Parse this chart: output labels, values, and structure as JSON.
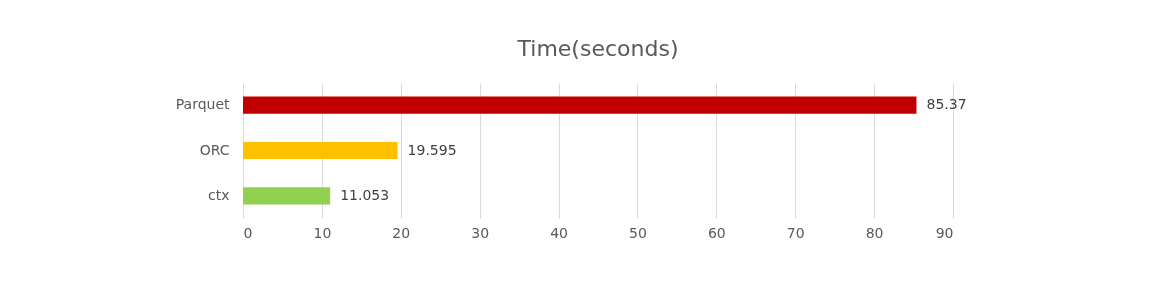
{
  "chart_data": {
    "type": "bar",
    "orientation": "horizontal",
    "title": "Time(seconds)",
    "categories": [
      "Parquet",
      "ORC",
      "ctx"
    ],
    "values": [
      85.37,
      19.595,
      11.053
    ],
    "colors": [
      "#c00000",
      "#ffc000",
      "#92d050"
    ],
    "xlim": [
      0,
      90
    ],
    "xticks": [
      0,
      10,
      20,
      30,
      40,
      50,
      60,
      70,
      80,
      90
    ],
    "grid": "x",
    "data_labels": true
  }
}
